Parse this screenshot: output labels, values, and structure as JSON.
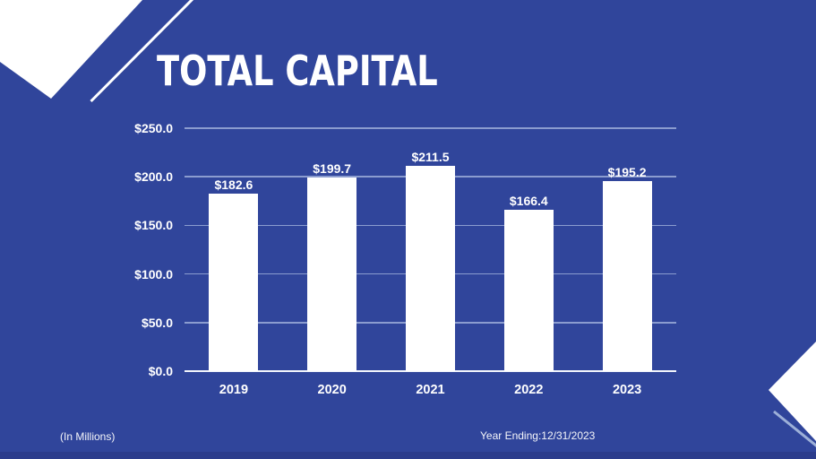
{
  "slide": {
    "title": "TOTAL CAPITAL",
    "footnote_left": "(In Millions)",
    "footnote_right": "Year Ending:12/31/2023"
  },
  "colors": {
    "background": "#30459B",
    "bottom_strip": "#2B3C8C",
    "bar_fill": "#FFFFFF",
    "gridline": "#A3B1DC",
    "axis_line": "#F2F5FB",
    "text": "#FFFFFF",
    "accent_line": "#9DB0D8"
  },
  "chart_data": {
    "type": "bar",
    "title": "TOTAL CAPITAL",
    "categories": [
      "2019",
      "2020",
      "2021",
      "2022",
      "2023"
    ],
    "values": [
      182.6,
      199.7,
      211.5,
      166.4,
      195.2
    ],
    "value_labels": [
      "$182.6",
      "$199.7",
      "$211.5",
      "$166.4",
      "$195.2"
    ],
    "y_ticks": [
      0,
      50,
      100,
      150,
      200,
      250
    ],
    "y_tick_labels": [
      "$0.0",
      "$50.0",
      "$100.0",
      "$150.0",
      "$200.0",
      "$250.0"
    ],
    "ylim": [
      0,
      250
    ],
    "xlabel": "",
    "ylabel": "",
    "unit_note": "(In Millions)",
    "grid": true,
    "legend": false,
    "bar_color": "#FFFFFF"
  }
}
